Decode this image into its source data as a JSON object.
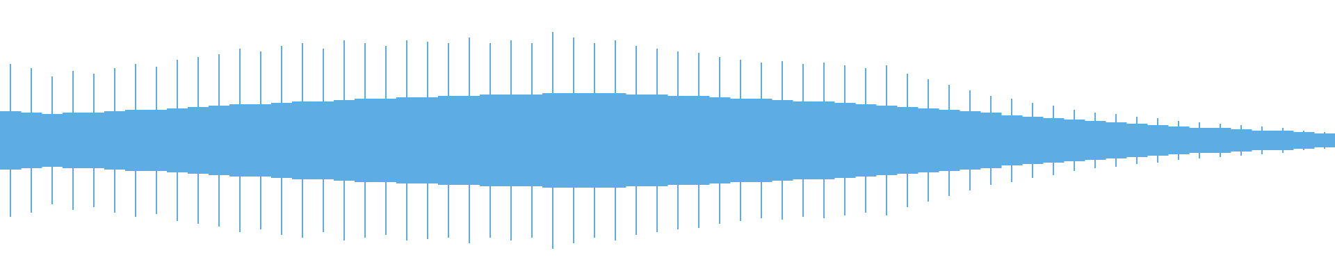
{
  "waveform": {
    "color": "#5dade2",
    "ylim": [
      -1,
      1
    ],
    "peaks": [
      0.55,
      0.52,
      0.46,
      0.5,
      0.48,
      0.52,
      0.55,
      0.53,
      0.58,
      0.6,
      0.62,
      0.66,
      0.64,
      0.68,
      0.7,
      0.66,
      0.72,
      0.7,
      0.68,
      0.72,
      0.71,
      0.7,
      0.74,
      0.7,
      0.72,
      0.7,
      0.78,
      0.74,
      0.7,
      0.72,
      0.68,
      0.66,
      0.64,
      0.63,
      0.6,
      0.58,
      0.56,
      0.57,
      0.55,
      0.56,
      0.54,
      0.52,
      0.54,
      0.48,
      0.44,
      0.4,
      0.36,
      0.32,
      0.3,
      0.27,
      0.25,
      0.22,
      0.2,
      0.19,
      0.17,
      0.16,
      0.14,
      0.13,
      0.12,
      0.11,
      0.1,
      0.09,
      0.07,
      0.06
    ],
    "body": [
      0.21,
      0.2,
      0.19,
      0.2,
      0.2,
      0.21,
      0.22,
      0.22,
      0.23,
      0.24,
      0.25,
      0.26,
      0.26,
      0.27,
      0.28,
      0.28,
      0.29,
      0.3,
      0.3,
      0.31,
      0.31,
      0.32,
      0.32,
      0.33,
      0.33,
      0.33,
      0.34,
      0.34,
      0.34,
      0.34,
      0.33,
      0.33,
      0.32,
      0.32,
      0.31,
      0.3,
      0.3,
      0.29,
      0.28,
      0.28,
      0.27,
      0.26,
      0.25,
      0.24,
      0.23,
      0.22,
      0.21,
      0.2,
      0.18,
      0.17,
      0.16,
      0.15,
      0.14,
      0.13,
      0.12,
      0.11,
      0.1,
      0.09,
      0.09,
      0.08,
      0.07,
      0.07,
      0.06,
      0.05
    ]
  }
}
